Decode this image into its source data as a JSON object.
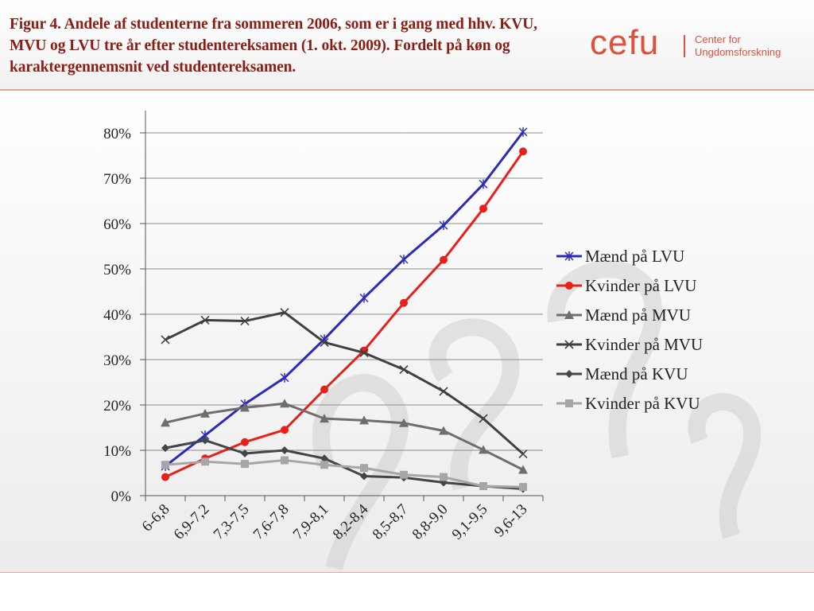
{
  "header": {
    "title": "Figur 4. Andele af studenterne fra sommeren 2006, som er i gang med hhv. KVU, MVU og LVU tre år efter studentereksamen (1. okt. 2009). Fordelt på køn og karaktergennemsnit ved studentereksamen.",
    "logo_word": "cefu",
    "logo_sub_line1": "Center for",
    "logo_sub_line2": "Ungdomsforskning"
  },
  "colors": {
    "title": "#8b1d14",
    "brand": "#e0503a",
    "gridline": "#8c8c8c"
  },
  "chart_data": {
    "type": "line",
    "title": "",
    "xlabel": "",
    "ylabel": "",
    "ylim": [
      0,
      80
    ],
    "yticks": [
      "0%",
      "10%",
      "20%",
      "30%",
      "40%",
      "50%",
      "60%",
      "70%",
      "80%"
    ],
    "grid": true,
    "legend_position": "right",
    "categories": [
      "6-6,8",
      "6,9-7,2",
      "7,3-7,5",
      "7,6-7,8",
      "7,9-8,1",
      "8,2-8,4",
      "8,5-8,7",
      "8,8-9,0",
      "9,1-9,5",
      "9,6-13"
    ],
    "series": [
      {
        "name": "Mænd på LVU",
        "color": "#2b2bb8",
        "marker": "star",
        "values": [
          6.5,
          13.3,
          20.2,
          26.0,
          34.5,
          43.6,
          52.1,
          59.6,
          68.7,
          80.2
        ]
      },
      {
        "name": "Kvinder på LVU",
        "color": "#e8201a",
        "marker": "circle",
        "values": [
          4.1,
          8.2,
          11.8,
          14.5,
          23.4,
          32.0,
          42.5,
          52.0,
          63.3,
          75.9
        ]
      },
      {
        "name": "Mænd på MVU",
        "color": "#6e6e6e",
        "marker": "triangle",
        "values": [
          16.1,
          18.1,
          19.4,
          20.3,
          17.0,
          16.6,
          16.0,
          14.3,
          10.1,
          5.7
        ]
      },
      {
        "name": "Kvinder på MVU",
        "color": "#404040",
        "marker": "x",
        "values": [
          34.4,
          38.7,
          38.5,
          40.4,
          33.8,
          31.5,
          27.8,
          23.0,
          17.0,
          9.2
        ]
      },
      {
        "name": "Mænd på KVU",
        "color": "#454545",
        "marker": "diamond",
        "values": [
          10.5,
          12.2,
          9.3,
          10.0,
          8.2,
          4.3,
          4.0,
          2.9,
          2.1,
          1.5
        ]
      },
      {
        "name": "Kvinder på KVU",
        "color": "#a6a6a6",
        "marker": "square",
        "values": [
          6.8,
          7.5,
          7.0,
          7.8,
          6.8,
          6.1,
          4.6,
          4.1,
          2.1,
          1.9
        ]
      }
    ]
  }
}
